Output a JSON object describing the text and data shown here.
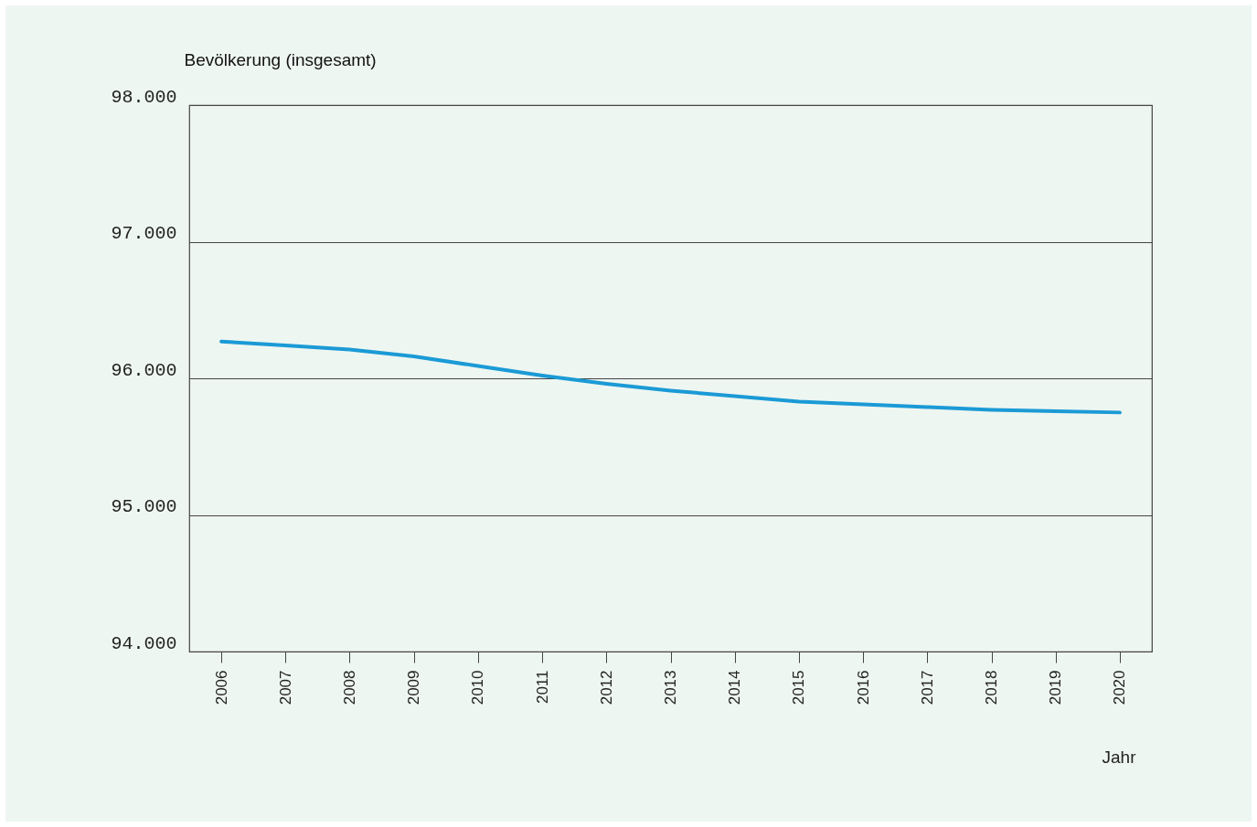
{
  "chart_data": {
    "type": "line",
    "xlabel": "Jahr",
    "ylabel": "Bevölkerung (insgesamt)",
    "categories": [
      "2006",
      "2007",
      "2008",
      "2009",
      "2010",
      "2011",
      "2012",
      "2013",
      "2014",
      "2015",
      "2016",
      "2017",
      "2018",
      "2019",
      "2020"
    ],
    "series": [
      {
        "color": "#1b9ad6",
        "values": [
          96270,
          96240,
          96210,
          96160,
          96090,
          96020,
          95960,
          95910,
          95870,
          95830,
          95810,
          95790,
          95770,
          95760,
          95750
        ]
      }
    ],
    "ylim": [
      94000,
      98000
    ],
    "yticks": [
      {
        "value": 94000,
        "label": "94.000"
      },
      {
        "value": 95000,
        "label": "95.000"
      },
      {
        "value": 96000,
        "label": "96.000"
      },
      {
        "value": 97000,
        "label": "97.000"
      },
      {
        "value": 98000,
        "label": "98.000"
      }
    ],
    "grid": "y",
    "marker": "none",
    "line_style": "solid"
  }
}
